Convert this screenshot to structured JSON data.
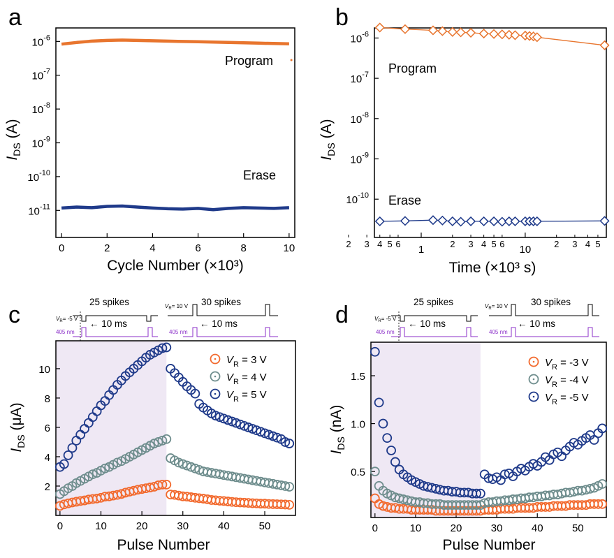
{
  "colors": {
    "program": "#e8752e",
    "erase": "#1f3a8a",
    "vr3": "#f26a2e",
    "vr4": "#6e8d8d",
    "vr5": "#1f3a8a",
    "shade": "#efe8f4",
    "purple": "#8b2fc9"
  },
  "chart_data": [
    {
      "panel": "a",
      "type": "line",
      "xlabel": "Cycle Number (×10³)",
      "ylabel_main": "I",
      "ylabel_sub": "DS",
      "ylabel_unit": " (A)",
      "x_ticks": [
        "0",
        "2",
        "4",
        "6",
        "8",
        "10"
      ],
      "xlim": [
        -0.25,
        10.25
      ],
      "y_log_range": [
        -11.8,
        -5.6
      ],
      "y_ticks": [
        {
          "base": "10",
          "exp": "-6",
          "val": -6
        },
        {
          "base": "10",
          "exp": "-7",
          "val": -7
        },
        {
          "base": "10",
          "exp": "-8",
          "val": -8
        },
        {
          "base": "10",
          "exp": "-9",
          "val": -9
        },
        {
          "base": "10",
          "exp": "-10",
          "val": -10
        },
        {
          "base": "10",
          "exp": "-11",
          "val": -11
        }
      ],
      "series": [
        {
          "name": "Program",
          "color_key": "program",
          "x_start": 0,
          "x_end": 10,
          "log_values": [
            -6.08,
            -6.03,
            -5.99,
            -5.97,
            -5.96,
            -5.97,
            -5.98,
            -5.99,
            -6.0,
            -6.01,
            -6.02,
            -6.03,
            -6.04,
            -6.05,
            -6.06,
            -6.07
          ],
          "outlier": {
            "x": 10.1,
            "log_y": -6.55
          }
        },
        {
          "name": "Erase",
          "color_key": "erase",
          "x_start": 0,
          "x_end": 10,
          "log_values": [
            -10.93,
            -10.9,
            -10.92,
            -10.88,
            -10.87,
            -10.9,
            -10.93,
            -10.95,
            -10.96,
            -10.94,
            -10.98,
            -10.94,
            -10.92,
            -10.93,
            -10.94,
            -10.92
          ]
        }
      ],
      "labels": [
        "Program",
        "Erase"
      ]
    },
    {
      "panel": "b",
      "type": "line",
      "xlabel": "Time (×10³ s)",
      "ylabel_main": "I",
      "ylabel_sub": "DS",
      "ylabel_unit": " (A)",
      "x_log_range": [
        -0.45,
        1.78
      ],
      "x_major_ticks": [
        {
          "label": "1",
          "val": 1
        },
        {
          "label": "10",
          "val": 10
        }
      ],
      "x_minor_labels": [
        "2",
        "3",
        "4",
        "5",
        "6",
        "2",
        "3",
        "4",
        "5",
        "6",
        "2",
        "3",
        "4",
        "5"
      ],
      "y_log_range": [
        -10.95,
        -5.75
      ],
      "y_ticks": [
        {
          "base": "10",
          "exp": "-6",
          "val": -6
        },
        {
          "base": "10",
          "exp": "-7",
          "val": -7
        },
        {
          "base": "10",
          "exp": "-8",
          "val": -8
        },
        {
          "base": "10",
          "exp": "-9",
          "val": -9
        },
        {
          "base": "10",
          "exp": "-10",
          "val": -10
        }
      ],
      "series": [
        {
          "name": "Program",
          "color_key": "program",
          "x": [
            0.4,
            0.7,
            1.3,
            1.6,
            2.0,
            2.4,
            3.0,
            4.0,
            5.0,
            6.0,
            7.0,
            8.0,
            10.0,
            11.0,
            12.0,
            13.0,
            58.0
          ],
          "log_values": [
            -5.74,
            -5.78,
            -5.81,
            -5.83,
            -5.85,
            -5.86,
            -5.87,
            -5.89,
            -5.9,
            -5.91,
            -5.92,
            -5.93,
            -5.94,
            -5.95,
            -5.96,
            -5.98,
            -6.18
          ]
        },
        {
          "name": "Erase",
          "color_key": "erase",
          "x": [
            0.4,
            0.7,
            1.3,
            1.6,
            2.0,
            2.4,
            3.0,
            4.0,
            5.0,
            6.0,
            7.0,
            8.0,
            10.0,
            11.0,
            12.0,
            13.0,
            58.0
          ],
          "log_values": [
            -10.55,
            -10.54,
            -10.52,
            -10.53,
            -10.55,
            -10.56,
            -10.55,
            -10.55,
            -10.55,
            -10.56,
            -10.55,
            -10.55,
            -10.55,
            -10.55,
            -10.55,
            -10.55,
            -10.54
          ]
        }
      ],
      "labels": [
        "Program",
        "Erase"
      ]
    },
    {
      "panel": "c",
      "type": "scatter",
      "xlabel": "Pulse Number",
      "ylabel_main": "I",
      "ylabel_sub": "DS",
      "ylabel_unit": " (μA)",
      "x_ticks": [
        "0",
        "10",
        "20",
        "30",
        "40",
        "50"
      ],
      "xlim": [
        -1,
        57.5
      ],
      "y_ticks": [
        "2",
        "4",
        "6",
        "8",
        "10"
      ],
      "ylim": [
        0,
        11.9
      ],
      "shaded_range": [
        0,
        26
      ],
      "series": [
        {
          "name_prefix": "V",
          "name_sub": "R",
          "name_suffix": " = 3 V",
          "color_key": "vr3",
          "x_start": 0,
          "x_step": 1,
          "values": [
            0.65,
            0.75,
            0.82,
            0.88,
            0.93,
            0.98,
            1.02,
            1.08,
            1.12,
            1.15,
            1.2,
            1.28,
            1.3,
            1.35,
            1.4,
            1.46,
            1.55,
            1.62,
            1.68,
            1.75,
            1.8,
            1.85,
            1.9,
            1.95,
            2.05,
            2.1,
            2.1,
            1.42,
            1.4,
            1.35,
            1.3,
            1.28,
            1.24,
            1.2,
            1.17,
            1.14,
            1.1,
            1.05,
            1.03,
            1.0,
            0.98,
            0.95,
            0.92,
            0.9,
            0.88,
            0.87,
            0.85,
            0.83,
            0.82,
            0.8,
            0.8,
            0.78,
            0.77,
            0.76,
            0.75,
            0.74,
            0.72
          ]
        },
        {
          "name_prefix": "V",
          "name_sub": "R",
          "name_suffix": " = 4 V",
          "color_key": "vr4",
          "x_start": 0,
          "x_step": 1,
          "values": [
            1.45,
            1.65,
            1.85,
            2.0,
            2.2,
            2.35,
            2.5,
            2.65,
            2.8,
            2.9,
            3.05,
            3.2,
            3.3,
            3.45,
            3.6,
            3.7,
            3.85,
            4.0,
            4.15,
            4.3,
            4.45,
            4.6,
            4.75,
            4.9,
            5.0,
            5.1,
            5.2,
            3.9,
            3.75,
            3.6,
            3.5,
            3.4,
            3.3,
            3.2,
            3.1,
            3.0,
            2.95,
            2.9,
            2.85,
            2.8,
            2.75,
            2.7,
            2.65,
            2.6,
            2.55,
            2.5,
            2.45,
            2.4,
            2.35,
            2.3,
            2.25,
            2.2,
            2.15,
            2.1,
            2.05,
            2.0,
            1.95
          ]
        },
        {
          "name_prefix": "V",
          "name_sub": "R",
          "name_suffix": " = 5 V",
          "color_key": "vr5",
          "x_start": 0,
          "x_step": 1,
          "values": [
            3.3,
            3.5,
            4.1,
            4.6,
            5.1,
            5.5,
            5.9,
            6.3,
            6.7,
            7.1,
            7.5,
            7.8,
            8.2,
            8.55,
            8.9,
            9.2,
            9.5,
            9.75,
            10.0,
            10.25,
            10.5,
            10.75,
            10.95,
            11.1,
            11.25,
            11.4,
            11.45,
            10.0,
            9.7,
            9.4,
            9.1,
            8.8,
            8.55,
            8.3,
            7.6,
            7.35,
            7.15,
            6.95,
            6.8,
            6.7,
            6.6,
            6.5,
            6.4,
            6.3,
            6.2,
            6.1,
            6.0,
            5.9,
            5.8,
            5.7,
            5.6,
            5.5,
            5.4,
            5.3,
            5.2,
            5.0,
            4.9
          ]
        }
      ],
      "inset": {
        "spikes_1": "25 spikes",
        "spikes_2": "30 spikes",
        "vr_1": "V",
        "vr_1_sub": "R",
        "vr_1_val": "= -5 V",
        "vr_2": "V",
        "vr_2_sub": "R",
        "vr_2_val": "= 10 V",
        "dt": "10 ms",
        "light": "405 nm"
      }
    },
    {
      "panel": "d",
      "type": "scatter",
      "xlabel": "Pulse Number",
      "ylabel_main": "I",
      "ylabel_sub": "DS",
      "ylabel_unit": " (nA)",
      "x_ticks": [
        "0",
        "10",
        "20",
        "30",
        "40",
        "50"
      ],
      "xlim": [
        -1,
        57
      ],
      "y_ticks": [
        "0.5",
        "1.0",
        "1.5"
      ],
      "ylim": [
        0.02,
        1.85
      ],
      "shaded_range": [
        0,
        26
      ],
      "series": [
        {
          "name_prefix": "V",
          "name_sub": "R",
          "name_suffix": " = -3 V",
          "color_key": "vr3",
          "x_start": 0,
          "x_step": 1,
          "values": [
            0.22,
            0.16,
            0.14,
            0.13,
            0.12,
            0.12,
            0.11,
            0.11,
            0.11,
            0.1,
            0.1,
            0.1,
            0.1,
            0.1,
            0.1,
            0.09,
            0.09,
            0.09,
            0.09,
            0.09,
            0.09,
            0.09,
            0.09,
            0.09,
            0.09,
            0.09,
            0.09,
            0.1,
            0.1,
            0.1,
            0.1,
            0.11,
            0.11,
            0.11,
            0.11,
            0.12,
            0.12,
            0.12,
            0.12,
            0.12,
            0.13,
            0.13,
            0.13,
            0.13,
            0.14,
            0.14,
            0.14,
            0.14,
            0.15,
            0.15,
            0.15,
            0.15,
            0.15,
            0.16,
            0.16,
            0.16,
            0.16
          ]
        },
        {
          "name_prefix": "V",
          "name_sub": "R",
          "name_suffix": " = -4 V",
          "color_key": "vr4",
          "x_start": 0,
          "x_step": 1,
          "values": [
            0.5,
            0.35,
            0.3,
            0.27,
            0.25,
            0.23,
            0.22,
            0.21,
            0.2,
            0.19,
            0.18,
            0.18,
            0.17,
            0.17,
            0.16,
            0.16,
            0.16,
            0.15,
            0.15,
            0.15,
            0.15,
            0.15,
            0.15,
            0.15,
            0.15,
            0.15,
            0.15,
            0.17,
            0.18,
            0.18,
            0.19,
            0.19,
            0.2,
            0.2,
            0.21,
            0.21,
            0.22,
            0.22,
            0.23,
            0.23,
            0.24,
            0.24,
            0.25,
            0.25,
            0.26,
            0.26,
            0.27,
            0.28,
            0.28,
            0.29,
            0.3,
            0.3,
            0.31,
            0.32,
            0.33,
            0.35,
            0.37
          ]
        },
        {
          "name_prefix": "V",
          "name_sub": "R",
          "name_suffix": " = -5 V",
          "color_key": "vr5",
          "x_start": 0,
          "x_step": 1,
          "values": [
            1.75,
            1.22,
            1.0,
            0.85,
            0.72,
            0.6,
            0.52,
            0.47,
            0.44,
            0.41,
            0.39,
            0.37,
            0.35,
            0.34,
            0.33,
            0.32,
            0.31,
            0.3,
            0.3,
            0.29,
            0.29,
            0.28,
            0.28,
            0.28,
            0.27,
            0.27,
            0.27,
            0.47,
            0.43,
            0.42,
            0.44,
            0.41,
            0.47,
            0.48,
            0.45,
            0.5,
            0.53,
            0.51,
            0.55,
            0.58,
            0.56,
            0.6,
            0.65,
            0.62,
            0.68,
            0.7,
            0.66,
            0.72,
            0.76,
            0.8,
            0.78,
            0.82,
            0.85,
            0.88,
            0.83,
            0.9,
            0.95
          ]
        }
      ],
      "inset": {
        "spikes_1": "25 spikes",
        "spikes_2": "30 spikes",
        "vr_1": "V",
        "vr_1_sub": "R",
        "vr_1_val": "= -5 V",
        "vr_2": "V",
        "vr_2_sub": "R",
        "vr_2_val": "= 10 V",
        "dt": "10 ms",
        "light": "405 nm"
      }
    }
  ]
}
